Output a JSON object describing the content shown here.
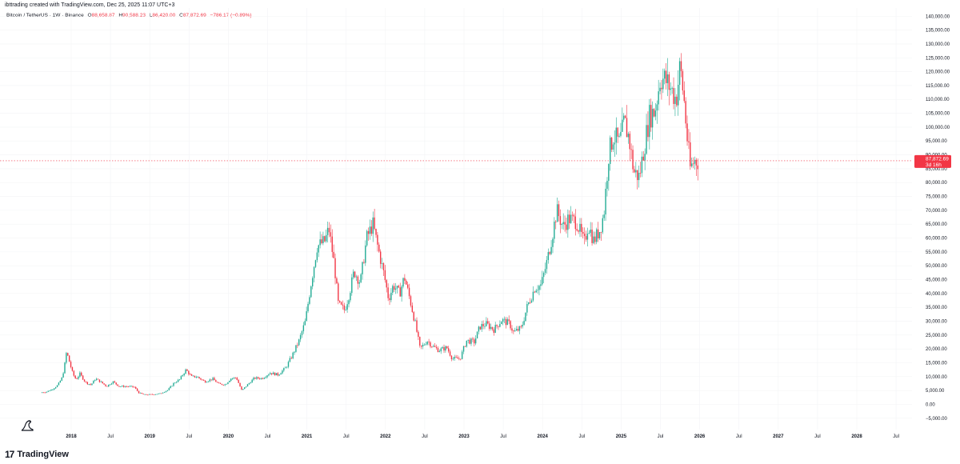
{
  "header": {
    "caption": "ibttrading created with TradingView.com, Dec 25, 2025 11:07 UTC+3"
  },
  "legend": {
    "symbol": "Bitcoin / TetherUS · 1W · Binance",
    "open_label": "O",
    "open_value": "88,658.87",
    "high_label": "H",
    "high_value": "90,588.23",
    "low_label": "L",
    "low_value": "86,420.00",
    "close_label": "C",
    "close_value": "87,872.69",
    "change": "−786.17 (−0.89%)"
  },
  "price_badge": {
    "price": "87,872.69",
    "countdown": "3d 16h"
  },
  "brand": {
    "name": "TradingView"
  },
  "colors": {
    "up": "#22ab94",
    "down": "#f23645",
    "price_line": "#f23645",
    "badge": "#f23645"
  },
  "chart_data": {
    "type": "candlestick",
    "interval": "1W",
    "ylim": [
      -5000,
      140000
    ],
    "y_ticks": [
      -5000,
      0,
      5000,
      10000,
      15000,
      20000,
      25000,
      30000,
      35000,
      40000,
      45000,
      50000,
      55000,
      60000,
      65000,
      70000,
      75000,
      80000,
      85000,
      90000,
      95000,
      100000,
      105000,
      110000,
      115000,
      120000,
      125000,
      130000,
      135000,
      140000
    ],
    "y_tick_labels": [
      "−5,000.00",
      "0.00",
      "5,000.00",
      "10,000.00",
      "15,000.00",
      "20,000.00",
      "25,000.00",
      "30,000.00",
      "35,000.00",
      "40,000.00",
      "45,000.00",
      "50,000.00",
      "55,000.00",
      "60,000.00",
      "65,000.00",
      "70,000.00",
      "75,000.00",
      "80,000.00",
      "85,000.00",
      "90,000.00",
      "95,000.00",
      "100,000.00",
      "105,000.00",
      "110,000.00",
      "115,000.00",
      "120,000.00",
      "125,000.00",
      "130,000.00",
      "135,000.00",
      "140,000.00"
    ],
    "x_range": [
      2017.55,
      2029.0
    ],
    "x_ticks": [
      {
        "t": 2018.0,
        "label": "2018",
        "year": true
      },
      {
        "t": 2018.5,
        "label": "Jul",
        "year": false
      },
      {
        "t": 2019.0,
        "label": "2019",
        "year": true
      },
      {
        "t": 2019.5,
        "label": "Jul",
        "year": false
      },
      {
        "t": 2020.0,
        "label": "2020",
        "year": true
      },
      {
        "t": 2020.5,
        "label": "Jul",
        "year": false
      },
      {
        "t": 2021.0,
        "label": "2021",
        "year": true
      },
      {
        "t": 2021.5,
        "label": "Jul",
        "year": false
      },
      {
        "t": 2022.0,
        "label": "2022",
        "year": true
      },
      {
        "t": 2022.5,
        "label": "Jul",
        "year": false
      },
      {
        "t": 2023.0,
        "label": "2023",
        "year": true
      },
      {
        "t": 2023.5,
        "label": "Jul",
        "year": false
      },
      {
        "t": 2024.0,
        "label": "2024",
        "year": true
      },
      {
        "t": 2024.5,
        "label": "Jul",
        "year": false
      },
      {
        "t": 2025.0,
        "label": "2025",
        "year": true
      },
      {
        "t": 2025.5,
        "label": "Jul",
        "year": false
      },
      {
        "t": 2026.0,
        "label": "2026",
        "year": true
      },
      {
        "t": 2026.5,
        "label": "Jul",
        "year": false
      },
      {
        "t": 2027.0,
        "label": "2027",
        "year": true
      },
      {
        "t": 2027.5,
        "label": "Jul",
        "year": false
      },
      {
        "t": 2028.0,
        "label": "2028",
        "year": true
      },
      {
        "t": 2028.5,
        "label": "Jul",
        "year": false
      }
    ],
    "last_price": 87872.69,
    "price_path": [
      [
        2017.63,
        4300
      ],
      [
        2017.7,
        4500
      ],
      [
        2017.78,
        5500
      ],
      [
        2017.85,
        7000
      ],
      [
        2017.9,
        9500
      ],
      [
        2017.93,
        13000
      ],
      [
        2017.96,
        19000
      ],
      [
        2018.0,
        15000
      ],
      [
        2018.04,
        11000
      ],
      [
        2018.08,
        9000
      ],
      [
        2018.13,
        11000
      ],
      [
        2018.2,
        8000
      ],
      [
        2018.27,
        7000
      ],
      [
        2018.33,
        9300
      ],
      [
        2018.4,
        8000
      ],
      [
        2018.47,
        6500
      ],
      [
        2018.55,
        8200
      ],
      [
        2018.63,
        6500
      ],
      [
        2018.72,
        6500
      ],
      [
        2018.82,
        6300
      ],
      [
        2018.88,
        4200
      ],
      [
        2018.95,
        3500
      ],
      [
        2019.05,
        3600
      ],
      [
        2019.15,
        3900
      ],
      [
        2019.25,
        5200
      ],
      [
        2019.33,
        7800
      ],
      [
        2019.4,
        9000
      ],
      [
        2019.48,
        12500
      ],
      [
        2019.55,
        10000
      ],
      [
        2019.62,
        10000
      ],
      [
        2019.72,
        8200
      ],
      [
        2019.82,
        9200
      ],
      [
        2019.9,
        7300
      ],
      [
        2019.98,
        7200
      ],
      [
        2020.05,
        9300
      ],
      [
        2020.12,
        9700
      ],
      [
        2020.19,
        5000
      ],
      [
        2020.26,
        7000
      ],
      [
        2020.35,
        9500
      ],
      [
        2020.45,
        9400
      ],
      [
        2020.55,
        11400
      ],
      [
        2020.65,
        10700
      ],
      [
        2020.75,
        13200
      ],
      [
        2020.83,
        17500
      ],
      [
        2020.92,
        23000
      ],
      [
        2021.0,
        30000
      ],
      [
        2021.08,
        45000
      ],
      [
        2021.15,
        57000
      ],
      [
        2021.25,
        59000
      ],
      [
        2021.3,
        63500
      ],
      [
        2021.37,
        50000
      ],
      [
        2021.42,
        36000
      ],
      [
        2021.5,
        34000
      ],
      [
        2021.56,
        40000
      ],
      [
        2021.62,
        48000
      ],
      [
        2021.7,
        44000
      ],
      [
        2021.78,
        60000
      ],
      [
        2021.86,
        65000
      ],
      [
        2021.92,
        57000
      ],
      [
        2022.0,
        47000
      ],
      [
        2022.06,
        38000
      ],
      [
        2022.12,
        43000
      ],
      [
        2022.2,
        40000
      ],
      [
        2022.26,
        46000
      ],
      [
        2022.33,
        38000
      ],
      [
        2022.4,
        29000
      ],
      [
        2022.46,
        20000
      ],
      [
        2022.55,
        23000
      ],
      [
        2022.62,
        21000
      ],
      [
        2022.7,
        19500
      ],
      [
        2022.8,
        20500
      ],
      [
        2022.87,
        16500
      ],
      [
        2022.97,
        16500
      ],
      [
        2023.05,
        23000
      ],
      [
        2023.15,
        22500
      ],
      [
        2023.22,
        28000
      ],
      [
        2023.3,
        29000
      ],
      [
        2023.4,
        27000
      ],
      [
        2023.5,
        30500
      ],
      [
        2023.6,
        29000
      ],
      [
        2023.65,
        26000
      ],
      [
        2023.75,
        27500
      ],
      [
        2023.82,
        35000
      ],
      [
        2023.92,
        42000
      ],
      [
        2024.0,
        43000
      ],
      [
        2024.08,
        52000
      ],
      [
        2024.15,
        62000
      ],
      [
        2024.2,
        70000
      ],
      [
        2024.28,
        64000
      ],
      [
        2024.35,
        67000
      ],
      [
        2024.45,
        66000
      ],
      [
        2024.55,
        58000
      ],
      [
        2024.6,
        65000
      ],
      [
        2024.67,
        59000
      ],
      [
        2024.75,
        63000
      ],
      [
        2024.8,
        69000
      ],
      [
        2024.86,
        90000
      ],
      [
        2024.92,
        97000
      ],
      [
        2025.0,
        94000
      ],
      [
        2025.06,
        102000
      ],
      [
        2025.12,
        96000
      ],
      [
        2025.18,
        84000
      ],
      [
        2025.25,
        82000
      ],
      [
        2025.32,
        94000
      ],
      [
        2025.38,
        104000
      ],
      [
        2025.45,
        106000
      ],
      [
        2025.52,
        118000
      ],
      [
        2025.58,
        117000
      ],
      [
        2025.65,
        114000
      ],
      [
        2025.72,
        110000
      ],
      [
        2025.77,
        122000
      ],
      [
        2025.82,
        110000
      ],
      [
        2025.86,
        96000
      ],
      [
        2025.9,
        85000
      ],
      [
        2025.95,
        88000
      ],
      [
        2025.98,
        87872
      ]
    ]
  }
}
